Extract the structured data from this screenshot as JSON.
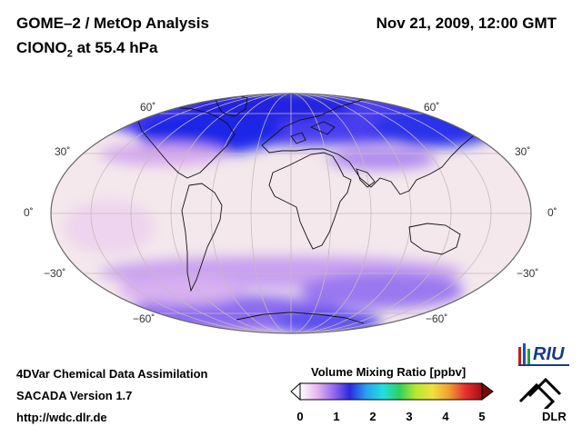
{
  "header": {
    "title": "GOME–2 / MetOp Analysis",
    "subtitle_main": "ClONO",
    "subtitle_sub": "2",
    "subtitle_rest": " at 55.4 hPa",
    "datetime": "Nov 21, 2009, 12:00 GMT"
  },
  "map": {
    "projection": "Mollweide",
    "latitude_labels": {
      "n60": "60˚",
      "n30": "30˚",
      "eq": "0˚",
      "s30": "−30˚",
      "s60": "−60˚"
    }
  },
  "footer": {
    "method": "4DVar Chemical Data Assimilation",
    "version": "SACADA Version 1.7",
    "url": "http://wdc.dlr.de"
  },
  "colorbar": {
    "title": "Volume Mixing Ratio [ppbv]",
    "ticks": [
      "0",
      "1",
      "2",
      "3",
      "4",
      "5"
    ],
    "range": [
      0,
      5
    ],
    "colors": [
      "#ffffff",
      "#e8b8f0",
      "#9a6af0",
      "#2a2ae0",
      "#2aa0f0",
      "#20e0e0",
      "#30d060",
      "#b8e830",
      "#f0e040",
      "#f0a030",
      "#e83030",
      "#a01010"
    ]
  },
  "logos": {
    "riu": "RIU",
    "dlr": "DLR"
  }
}
